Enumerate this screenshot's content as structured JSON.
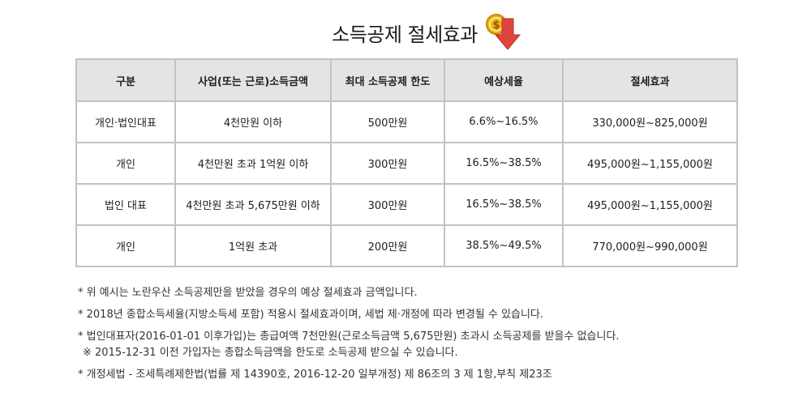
{
  "page": {
    "title": "소득공제 절세효과",
    "icon": "coin-down-arrow-icon",
    "colors": {
      "header_bg": "#e4e4e4",
      "border": "#c2c2c2",
      "coin": "#f2b417",
      "arrow": "#e0453d"
    }
  },
  "table": {
    "headers": [
      "구분",
      "사업(또는 근로)소득금액",
      "최대 소득공제 한도",
      "예상세율",
      "절세효과"
    ],
    "rows": [
      [
        "개인·법인대표",
        "4천만원 이하",
        "500만원",
        "6.6%~16.5%",
        "330,000원~825,000원"
      ],
      [
        "개인",
        "4천만원 초과 1억원 이하",
        "300만원",
        "16.5%~38.5%",
        "495,000원~1,155,000원"
      ],
      [
        "법인 대표",
        "4천만원 초과 5,675만원 이하",
        "300만원",
        "16.5%~38.5%",
        "495,000원~1,155,000원"
      ],
      [
        "개인",
        "1억원 초과",
        "200만원",
        "38.5%~49.5%",
        "770,000원~990,000원"
      ]
    ]
  },
  "notes": [
    "* 위 예시는 노란우산 소득공제만을 받았을 경우의 예상 절세효과 금액입니다.",
    "* 2018년 종합소득세율(지방소득세 포함) 적용시 절세효과이며, 세법 제·개정에 따라 변경될 수 있습니다.",
    "* 법인대표자(2016-01-01 이후가입)는 총급여액 7천만원(근로소득금액 5,675만원) 초과시 소득공제를 받을수 없습니다.",
    "※ 2015-12-31 이전 가입자는 총합소득금액을  한도로 소득공제 받으실 수 있습니다.",
    "* 개정세법 - 조세특례제한법(법률 제 14390호, 2016-12-20 일부개정) 제 86조의 3 제 1항,부칙 제23조"
  ]
}
